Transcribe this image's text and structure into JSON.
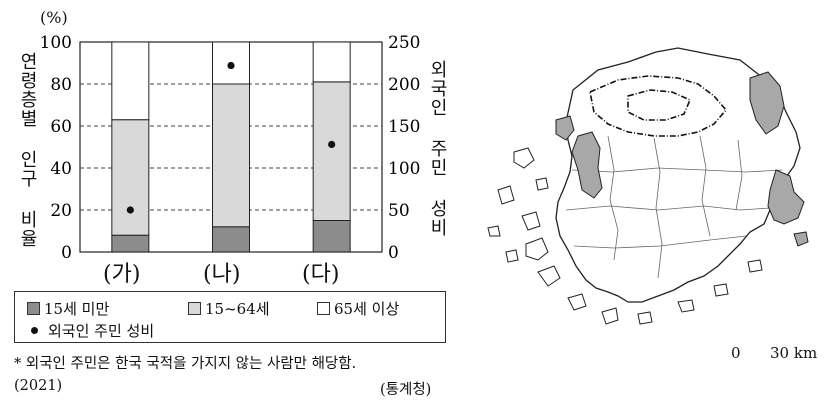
{
  "chart_data": {
    "type": "bar",
    "stacked": true,
    "categories": [
      "(가)",
      "(나)",
      "(다)"
    ],
    "series": [
      {
        "name": "15세 미만",
        "values": [
          8,
          12,
          15
        ],
        "color": "#8c8c8c"
      },
      {
        "name": "15~64세",
        "values": [
          55,
          68,
          66
        ],
        "color": "#d9d9d9"
      },
      {
        "name": "65세 이상",
        "values": [
          37,
          20,
          19
        ],
        "color": "#ffffff"
      }
    ],
    "secondary_series": {
      "name": "외국인 주민 성비",
      "values": [
        50,
        222,
        128
      ],
      "marker": "dot"
    },
    "ylabel": "연령층별 인구 비율",
    "yunit": "(%)",
    "ylim": [
      0,
      100
    ],
    "yticks": [
      "0",
      "20",
      "40",
      "60",
      "80",
      "100"
    ],
    "y2label": "외국인 주민 성비",
    "y2lim": [
      0,
      250
    ],
    "y2ticks": [
      "0",
      "50",
      "100",
      "150",
      "200",
      "250"
    ],
    "grid": "dashed"
  },
  "footnote": "* 외국인 주민은 한국 국적을 가지지 않는 사람만 해당함.",
  "year": "(2021)",
  "source": "(통계청)",
  "map": {
    "scale_zero": "0",
    "scale_value": "30 km",
    "highlight_color": "#a8a8a8"
  }
}
